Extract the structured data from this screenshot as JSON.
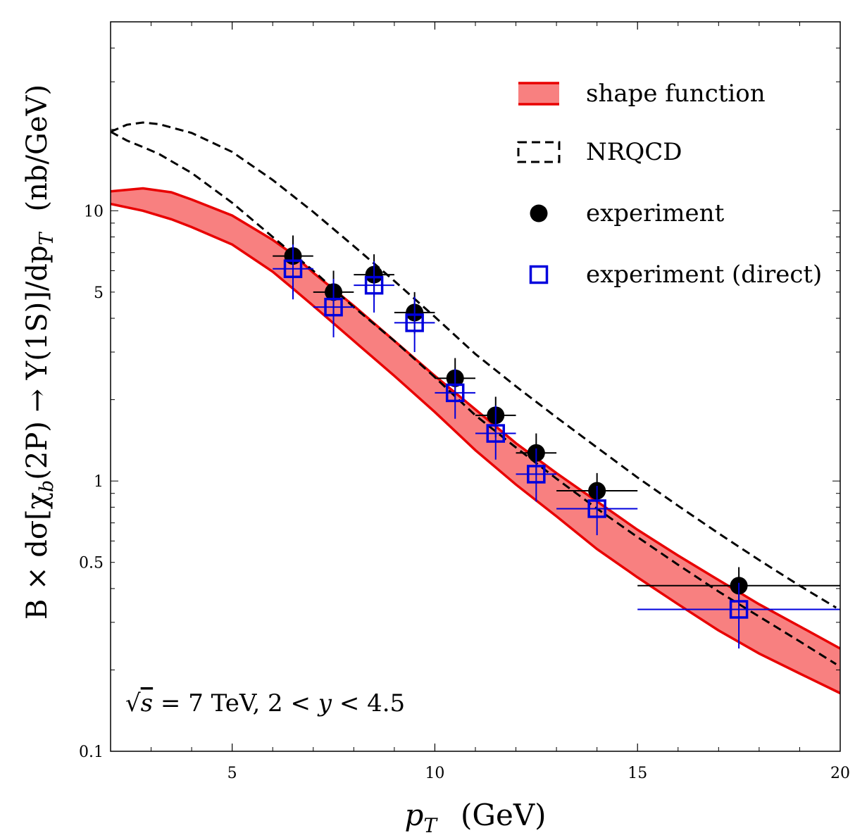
{
  "chart_data": {
    "type": "line",
    "xlabel": {
      "var": "p",
      "sub": "T",
      "unit": "(GeV)"
    },
    "ylabel": {
      "pre": "B × dσ[χ",
      "sub1": "b",
      "mid": "(2P) → Υ(1S)]/dp",
      "sub2": "T",
      "unit": "(nb/GeV)"
    },
    "xlim": [
      2,
      20
    ],
    "ylim": [
      0.1,
      50
    ],
    "yscale": "log",
    "xticks": [
      {
        "value": 5,
        "label": "5"
      },
      {
        "value": 10,
        "label": "10"
      },
      {
        "value": 15,
        "label": "15"
      },
      {
        "value": 20,
        "label": "20"
      }
    ],
    "yticks": [
      {
        "value": 0.1,
        "label": "0.1"
      },
      {
        "value": 0.5,
        "label": "0.5"
      },
      {
        "value": 1,
        "label": "1"
      },
      {
        "value": 5,
        "label": "5"
      },
      {
        "value": 10,
        "label": "10"
      }
    ],
    "annotation": {
      "pre": "√",
      "s": "s",
      "rest": " = 7 TeV, 2 < ",
      "y": "y",
      "rest2": " < 4.5"
    },
    "legend": {
      "placement": "top-right",
      "entries": [
        {
          "key": "shape",
          "label": "shape function"
        },
        {
          "key": "nrqcd",
          "label": "NRQCD"
        },
        {
          "key": "exp",
          "label": "experiment"
        },
        {
          "key": "direct",
          "label": "experiment (direct)"
        }
      ]
    },
    "colors": {
      "band_fill": "#f88080",
      "band_edge": "#e80000",
      "nrqcd": "#000000",
      "experiment": "#000000",
      "direct": "#0000dd"
    },
    "series": [
      {
        "key": "shape",
        "kind": "band",
        "x": [
          2,
          2.8,
          3.5,
          4,
          5,
          6,
          6.5,
          7,
          8,
          9,
          10,
          11,
          12,
          13,
          14,
          15,
          16,
          17,
          18,
          19,
          20
        ],
        "upper": [
          11.8,
          12.1,
          11.7,
          11.0,
          9.6,
          7.8,
          6.9,
          5.9,
          4.45,
          3.3,
          2.45,
          1.84,
          1.38,
          1.07,
          0.84,
          0.66,
          0.53,
          0.43,
          0.35,
          0.29,
          0.24
        ],
        "lower": [
          10.6,
          10.0,
          9.3,
          8.7,
          7.5,
          5.95,
          5.15,
          4.45,
          3.3,
          2.45,
          1.8,
          1.3,
          0.97,
          0.74,
          0.56,
          0.44,
          0.35,
          0.28,
          0.23,
          0.194,
          0.164
        ]
      },
      {
        "key": "nrqcd",
        "kind": "dashed-band",
        "x": [
          2,
          2.4,
          2.8,
          3.2,
          4,
          5,
          6,
          7,
          8,
          9,
          10,
          11,
          12,
          13,
          14,
          15,
          16,
          17,
          18,
          19,
          19.9
        ],
        "upper": [
          19.6,
          20.8,
          21.2,
          20.9,
          19.4,
          16.5,
          13.0,
          9.9,
          7.4,
          5.5,
          4.05,
          2.95,
          2.24,
          1.72,
          1.33,
          1.03,
          0.81,
          0.64,
          0.51,
          0.41,
          0.34
        ],
        "lower": [
          19.6,
          18.2,
          17.2,
          16.2,
          13.8,
          10.7,
          8.0,
          6.0,
          4.4,
          3.3,
          2.42,
          1.75,
          1.33,
          1.02,
          0.79,
          0.62,
          0.49,
          0.39,
          0.315,
          0.255,
          0.21
        ]
      },
      {
        "key": "exp",
        "kind": "points",
        "points": [
          {
            "x": 6.5,
            "y": 6.8,
            "xerr": 0.5,
            "ylo": 5.6,
            "yhi": 8.1
          },
          {
            "x": 7.5,
            "y": 5.0,
            "xerr": 0.5,
            "ylo": 4.1,
            "yhi": 6.0
          },
          {
            "x": 8.5,
            "y": 5.8,
            "xerr": 0.5,
            "ylo": 4.8,
            "yhi": 6.9
          },
          {
            "x": 9.5,
            "y": 4.2,
            "xerr": 0.5,
            "ylo": 3.5,
            "yhi": 5.0
          },
          {
            "x": 10.5,
            "y": 2.4,
            "xerr": 0.5,
            "ylo": 2.0,
            "yhi": 2.85
          },
          {
            "x": 11.5,
            "y": 1.75,
            "xerr": 0.5,
            "ylo": 1.45,
            "yhi": 2.05
          },
          {
            "x": 12.5,
            "y": 1.27,
            "xerr": 0.5,
            "ylo": 1.06,
            "yhi": 1.5
          },
          {
            "x": 14.0,
            "y": 0.92,
            "xerr": 1.0,
            "ylo": 0.78,
            "yhi": 1.07
          },
          {
            "x": 17.5,
            "y": 0.41,
            "xerr": 2.5,
            "ylo": 0.35,
            "yhi": 0.48
          }
        ]
      },
      {
        "key": "direct",
        "kind": "points",
        "points": [
          {
            "x": 6.5,
            "y": 6.1,
            "xerr": 0.5,
            "ylo": 4.7,
            "yhi": 7.5
          },
          {
            "x": 7.5,
            "y": 4.4,
            "xerr": 0.5,
            "ylo": 3.4,
            "yhi": 5.6
          },
          {
            "x": 8.5,
            "y": 5.3,
            "xerr": 0.5,
            "ylo": 4.2,
            "yhi": 6.5
          },
          {
            "x": 9.5,
            "y": 3.85,
            "xerr": 0.5,
            "ylo": 3.0,
            "yhi": 4.8
          },
          {
            "x": 10.5,
            "y": 2.12,
            "xerr": 0.5,
            "ylo": 1.7,
            "yhi": 2.6
          },
          {
            "x": 11.5,
            "y": 1.5,
            "xerr": 0.5,
            "ylo": 1.2,
            "yhi": 1.9
          },
          {
            "x": 12.5,
            "y": 1.06,
            "xerr": 0.5,
            "ylo": 0.84,
            "yhi": 1.32
          },
          {
            "x": 14.0,
            "y": 0.79,
            "xerr": 1.0,
            "ylo": 0.63,
            "yhi": 0.96
          },
          {
            "x": 17.5,
            "y": 0.335,
            "xerr": 2.5,
            "ylo": 0.24,
            "yhi": 0.42
          }
        ]
      }
    ]
  }
}
